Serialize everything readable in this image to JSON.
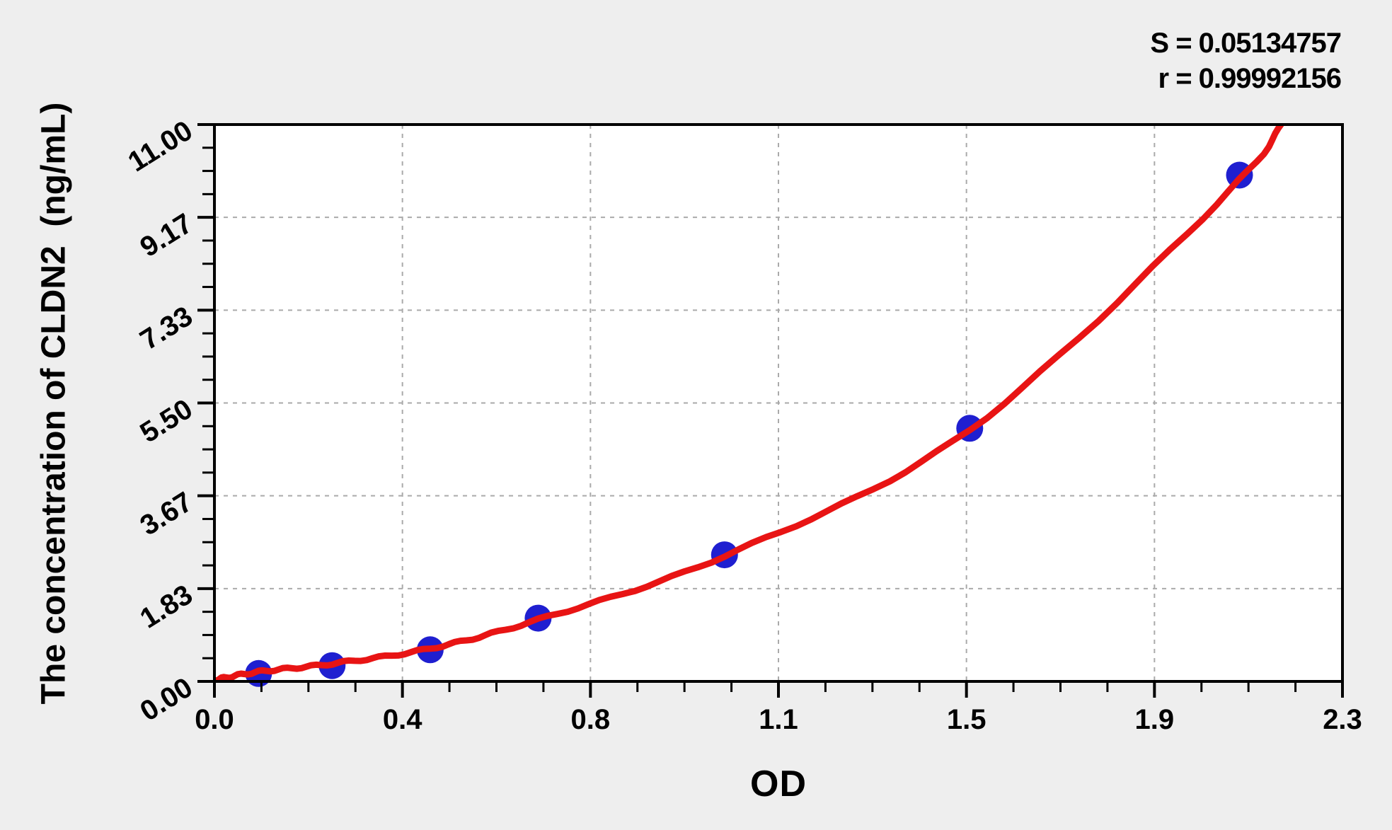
{
  "annotation": {
    "s_line": "S = 0.05134757",
    "r_line": "r = 0.99992156"
  },
  "chart_data": {
    "type": "scatter",
    "title": "",
    "xlabel": "OD",
    "ylabel": "The concentration of CLDN2  (ng/mL)",
    "xlim": [
      0,
      2.3
    ],
    "ylim": [
      0,
      11
    ],
    "x_tick_labels": [
      "0.0",
      "0.4",
      "0.8",
      "1.1",
      "1.5",
      "1.9",
      "2.3"
    ],
    "y_tick_labels": [
      "0.00",
      "1.83",
      "3.67",
      "5.50",
      "7.33",
      "9.17",
      "11.00"
    ],
    "minor_divisions_per_major": 4,
    "grid": {
      "style": "dashed",
      "color": "#aaaaaa"
    },
    "fit": {
      "S": 0.05134757,
      "r": 0.99992156
    },
    "series": [
      {
        "name": "standard-points",
        "type": "scatter",
        "color": "#1f1fd0",
        "x": [
          0.09,
          0.24,
          0.44,
          0.66,
          1.04,
          1.54,
          2.09
        ],
        "y": [
          0.156,
          0.312,
          0.625,
          1.25,
          2.5,
          5,
          10
        ]
      },
      {
        "name": "fitted-curve",
        "type": "line",
        "color": "#e81414",
        "anchors": [
          [
            0,
            0.03
          ],
          [
            0.09,
            0.19
          ],
          [
            0.24,
            0.35
          ],
          [
            0.44,
            0.65
          ],
          [
            0.66,
            1.22
          ],
          [
            1.04,
            2.48
          ],
          [
            1.54,
            4.97
          ],
          [
            2.09,
            9.9
          ],
          [
            2.19,
            11.5
          ]
        ]
      }
    ],
    "colors": {
      "plot_bg": "#ffffff",
      "page_bg": "#eeeeee",
      "axis": "#000000"
    }
  }
}
